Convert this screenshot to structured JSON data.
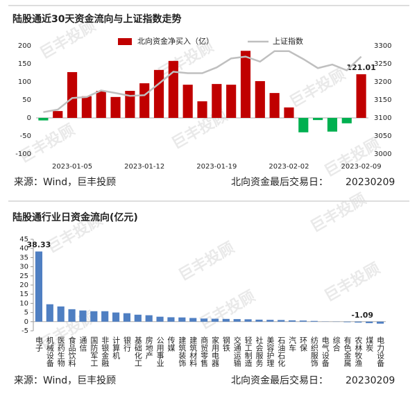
{
  "watermark": "巨丰投顾",
  "chart_data": [
    {
      "type": "combo",
      "title": "陆股通近30天资金流向与上证指数走势",
      "categories": [
        null,
        null,
        "2023-01-05",
        null,
        null,
        null,
        null,
        "2023-01-12",
        null,
        null,
        null,
        null,
        "2023-01-19",
        null,
        null,
        null,
        null,
        "2023-02-02",
        null,
        null,
        null,
        null,
        "2023-02-09"
      ],
      "series": [
        {
          "name": "北向资金净买入（亿）",
          "type": "bar",
          "color": "#c00000",
          "negative_color": "#00b050",
          "values": [
            -7,
            19,
            127,
            60,
            75,
            58,
            75,
            96,
            133,
            158,
            92,
            46,
            94,
            92,
            186,
            102,
            69,
            29,
            -40,
            -6,
            -38,
            -15,
            121.01
          ],
          "value_labels": [
            null,
            null,
            null,
            null,
            null,
            null,
            null,
            null,
            null,
            null,
            null,
            null,
            null,
            null,
            null,
            null,
            null,
            null,
            null,
            null,
            null,
            null,
            "121.01"
          ]
        },
        {
          "name": "上证指数",
          "type": "line",
          "axis": "y2",
          "color": "#bfbfbf",
          "values": [
            3116,
            3123,
            3155,
            3158,
            3176,
            3169,
            3161,
            3163,
            3195,
            3228,
            3224,
            3224,
            3240,
            3265,
            3270,
            3256,
            3285,
            3285,
            3263,
            3238,
            3248,
            3232,
            3270
          ]
        }
      ],
      "ylim": [
        -100,
        200
      ],
      "yticks": [
        -100,
        -50,
        0,
        50,
        100,
        150,
        200
      ],
      "y2lim": [
        3000,
        3300
      ],
      "y2ticks": [
        3000,
        3050,
        3100,
        3150,
        3200,
        3250,
        3300
      ],
      "legend": "top"
    },
    {
      "type": "bar",
      "title": "陆股通行业日资金流向(亿元)",
      "categories": [
        "电子",
        "机械设备",
        "医药生物",
        "食品饮料",
        "通信",
        "国防军工",
        "非银金融",
        "计算机",
        "银行",
        "基础化工",
        "房地产",
        "公用事业",
        "传媒",
        "建筑装饰",
        "建筑材料",
        "商贸零售",
        "家用电器",
        "钢铁",
        "交通运输",
        "轻工制造",
        "社会服务",
        "美容护理",
        "石油石化",
        "汽车",
        "环保",
        "纺织服饰",
        "电气设备",
        "综合",
        "有色金属",
        "农林牧渔",
        "煤炭",
        "电力设备"
      ],
      "values": [
        38.33,
        9.5,
        8.3,
        6.8,
        6.1,
        5.7,
        5.7,
        5.0,
        4.6,
        3.8,
        3.5,
        2.7,
        2.4,
        2.3,
        2.0,
        1.7,
        1.6,
        1.5,
        1.4,
        1.3,
        1.1,
        1.0,
        0.9,
        0.7,
        0.6,
        0.4,
        0.1,
        -0.1,
        -0.3,
        -0.5,
        -0.8,
        -1.09
      ],
      "value_labels": [
        "38.33",
        null,
        null,
        null,
        null,
        null,
        null,
        null,
        null,
        null,
        null,
        null,
        null,
        null,
        null,
        null,
        null,
        null,
        null,
        null,
        null,
        null,
        null,
        null,
        null,
        null,
        null,
        null,
        null,
        null,
        null,
        "-1.09"
      ],
      "color": "#4f7fc2",
      "ylim": [
        -5,
        45
      ],
      "yticks": [
        -5,
        0,
        5,
        10,
        15,
        20,
        25,
        30,
        35,
        40,
        45
      ]
    }
  ],
  "footers": [
    {
      "source": "来源：Wind，巨丰投顾",
      "last_day_label": "北向资金最后交易日：",
      "last_day": "20230209"
    },
    {
      "source": "来源：Wind，巨丰投顾",
      "last_day_label": "北向资金最后交易日：",
      "last_day": "20230209"
    }
  ]
}
